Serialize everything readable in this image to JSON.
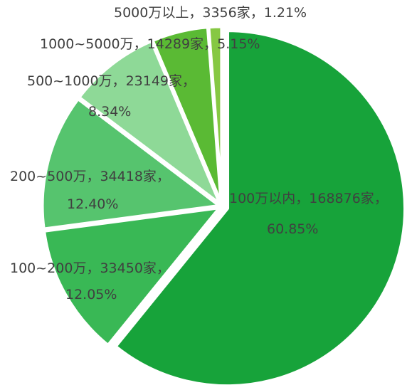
{
  "chart_data": {
    "type": "pie",
    "title": "",
    "slices": [
      {
        "name": "100万以内",
        "count": "168876家",
        "percent_label": "60.85%",
        "value": 60.85,
        "color": "#17a33a"
      },
      {
        "name": "100~200万",
        "count": "33450家",
        "percent_label": "12.05%",
        "value": 12.05,
        "color": "#39b855"
      },
      {
        "name": "200~500万",
        "count": "34418家",
        "percent_label": "12.40%",
        "value": 12.4,
        "color": "#56c46e"
      },
      {
        "name": "500~1000万",
        "count": "23149家",
        "percent_label": "8.34%",
        "value": 8.34,
        "color": "#8ed997"
      },
      {
        "name": "1000~5000万",
        "count": "14289家",
        "percent_label": "5.15%",
        "value": 5.15,
        "color": "#5aba34"
      },
      {
        "name": "5000万以上",
        "count": "3356家",
        "percent_label": "1.21%",
        "value": 1.21,
        "color": "#86c843"
      }
    ]
  }
}
